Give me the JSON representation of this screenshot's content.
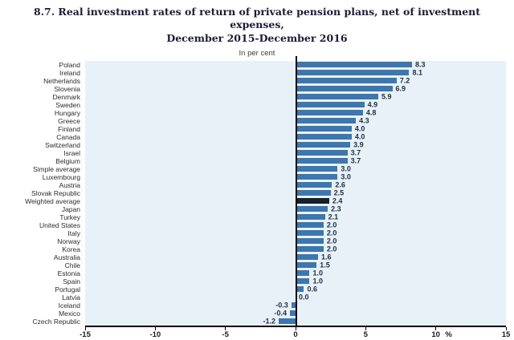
{
  "title": {
    "line1": "8.7.  Real investment rates of return of private pension plans, net of investment expenses,",
    "line2": "December 2015-December 2016"
  },
  "subtitle": "In per cent",
  "chart_data": {
    "type": "bar",
    "orientation": "horizontal",
    "title": "8.7. Real investment rates of return of private pension plans, net of investment expenses, December 2015-December 2016",
    "subtitle": "In per cent",
    "xlim": [
      -15,
      15
    ],
    "x_ticks": [
      -15,
      -10,
      -5,
      0,
      5,
      10,
      15
    ],
    "x_unit": "%",
    "grid": false,
    "legend": null,
    "categories": [
      "Poland",
      "Ireland",
      "Netherlands",
      "Slovenia",
      "Denmark",
      "Sweden",
      "Hungary",
      "Greece",
      "Finland",
      "Canada",
      "Switzerland",
      "Israel",
      "Belgium",
      "Simple average",
      "Luxembourg",
      "Austria",
      "Slovak Republic",
      "Weighted average",
      "Japan",
      "Turkey",
      "United States",
      "Italy",
      "Norway",
      "Korea",
      "Australia",
      "Chile",
      "Estonia",
      "Spain",
      "Portugal",
      "Latvia",
      "Iceland",
      "Mexico",
      "Czech Republic"
    ],
    "values": [
      8.3,
      8.1,
      7.2,
      6.9,
      5.9,
      4.9,
      4.8,
      4.3,
      4.0,
      4.0,
      3.9,
      3.7,
      3.7,
      3.0,
      3.0,
      2.6,
      2.5,
      2.4,
      2.3,
      2.1,
      2.0,
      2.0,
      2.0,
      2.0,
      1.6,
      1.5,
      1.0,
      1.0,
      0.6,
      0.0,
      -0.3,
      -0.4,
      -1.2
    ],
    "highlighted": [
      "Weighted average"
    ],
    "colors": {
      "bar": "#3e76ae",
      "highlight_bar": "#17202a",
      "plot_background": "#e8f1f8",
      "value_label": "#1c2e45",
      "axis_line": "#000000"
    }
  }
}
